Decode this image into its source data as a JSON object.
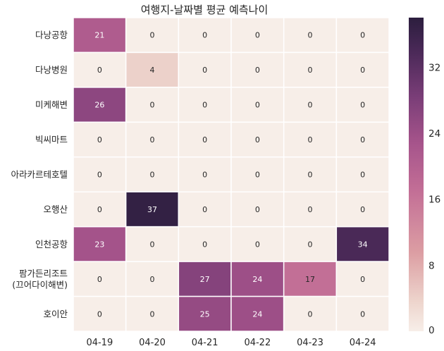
{
  "chart_data": {
    "type": "heatmap",
    "title": "여행지-날짜별 평균 예측나이",
    "xlabel": "",
    "ylabel": "",
    "columns": [
      "04-19",
      "04-20",
      "04-21",
      "04-22",
      "04-23",
      "04-24"
    ],
    "rows": [
      [
        "다낭공항"
      ],
      [
        "다낭병원"
      ],
      [
        "미케해변"
      ],
      [
        "빅씨마트"
      ],
      [
        "아라카르테호텔"
      ],
      [
        "오행산"
      ],
      [
        "인천공항"
      ],
      [
        "팜가든리조트",
        "(끄어다이해변)"
      ],
      [
        "호이안"
      ]
    ],
    "values": [
      [
        21,
        0,
        0,
        0,
        0,
        0
      ],
      [
        0,
        4,
        0,
        0,
        0,
        0
      ],
      [
        26,
        0,
        0,
        0,
        0,
        0
      ],
      [
        0,
        0,
        0,
        0,
        0,
        0
      ],
      [
        0,
        0,
        0,
        0,
        0,
        0
      ],
      [
        0,
        37,
        0,
        0,
        0,
        0
      ],
      [
        23,
        0,
        0,
        0,
        0,
        34
      ],
      [
        0,
        0,
        27,
        24,
        17,
        0
      ],
      [
        0,
        0,
        25,
        24,
        0,
        0
      ]
    ],
    "vmin": 0,
    "vmax": 38,
    "colorbar_ticks": [
      0,
      8,
      16,
      24,
      32
    ],
    "colormap": "seaborn cubehelix (light cream to dark purple)",
    "annotate": true,
    "gridlines": "white cell borders"
  }
}
